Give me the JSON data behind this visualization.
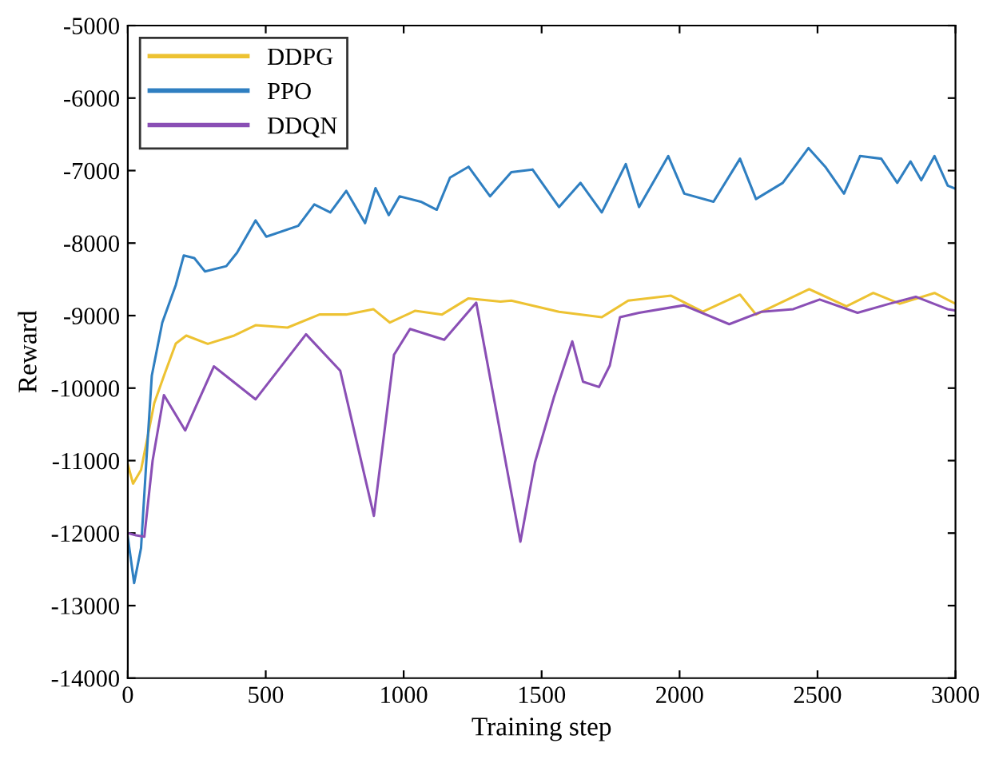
{
  "chart_data": {
    "type": "line",
    "xlabel": "Training step",
    "ylabel": "Reward",
    "xlim": [
      0,
      3000
    ],
    "xticks": [
      0,
      500,
      1000,
      1500,
      2000,
      2500,
      3000
    ],
    "ylim": [
      -14000,
      -5000
    ],
    "yticks": [
      -14000,
      -13000,
      -12000,
      -11000,
      -10000,
      -9000,
      -8000,
      -7000,
      -6000,
      -5000
    ],
    "grid": false,
    "legend": "top left",
    "line_style": "solid",
    "marker": "none",
    "series": [
      {
        "name": "DDPG",
        "color": "#edc232",
        "x": [
          0,
          19,
          48,
          96,
          134,
          174,
          212,
          290,
          386,
          463,
          579,
          695,
          792,
          890,
          950,
          1042,
          1139,
          1235,
          1351,
          1390,
          1563,
          1718,
          1814,
          1969,
          2084,
          2219,
          2277,
          2470,
          2605,
          2702,
          2798,
          2924,
          3000
        ],
        "values": [
          -11050,
          -11318,
          -11130,
          -10207,
          -9800,
          -9385,
          -9275,
          -9390,
          -9275,
          -9133,
          -9165,
          -8985,
          -8985,
          -8911,
          -9096,
          -8933,
          -8985,
          -8762,
          -8806,
          -8793,
          -8947,
          -9022,
          -8793,
          -8725,
          -8947,
          -8710,
          -8985,
          -8636,
          -8873,
          -8688,
          -8836,
          -8688,
          -8836
        ]
      },
      {
        "name": "PPO",
        "color": "#2f7fc1",
        "x": [
          0,
          23,
          48,
          67,
          87,
          125,
          174,
          203,
          241,
          280,
          357,
          396,
          463,
          502,
          618,
          676,
          734,
          792,
          860,
          898,
          946,
          985,
          1062,
          1120,
          1168,
          1235,
          1313,
          1390,
          1467,
          1563,
          1641,
          1718,
          1805,
          1853,
          1959,
          2017,
          2123,
          2219,
          2277,
          2374,
          2467,
          2528,
          2596,
          2654,
          2731,
          2789,
          2837,
          2876,
          2924,
          2972,
          3000
        ],
        "values": [
          -12052,
          -12688,
          -12207,
          -11022,
          -9830,
          -9096,
          -8578,
          -8170,
          -8207,
          -8392,
          -8318,
          -8133,
          -7688,
          -7911,
          -7762,
          -7466,
          -7577,
          -7280,
          -7725,
          -7243,
          -7614,
          -7355,
          -7429,
          -7540,
          -7096,
          -6947,
          -7355,
          -7022,
          -6985,
          -7503,
          -7169,
          -7577,
          -6911,
          -7503,
          -6800,
          -7318,
          -7429,
          -6836,
          -7392,
          -7169,
          -6689,
          -6947,
          -7318,
          -6800,
          -6836,
          -7169,
          -6873,
          -7133,
          -6800,
          -7207,
          -7250
        ]
      },
      {
        "name": "DDQN",
        "color": "#8a4fb5",
        "x": [
          0,
          30,
          60,
          90,
          131,
          208,
          312,
          463,
          646,
          770,
          892,
          965,
          1023,
          1147,
          1263,
          1423,
          1476,
          1544,
          1611,
          1650,
          1708,
          1747,
          1784,
          1853,
          2015,
          2180,
          2297,
          2412,
          2508,
          2645,
          2761,
          2856,
          2971,
          3000
        ],
        "values": [
          -12000,
          -12030,
          -12050,
          -11000,
          -10096,
          -10584,
          -9700,
          -10155,
          -9258,
          -9760,
          -11762,
          -9540,
          -9185,
          -9333,
          -8822,
          -12118,
          -11022,
          -10133,
          -9355,
          -9911,
          -9985,
          -9689,
          -9022,
          -8962,
          -8858,
          -9118,
          -8947,
          -8911,
          -8778,
          -8962,
          -8836,
          -8740,
          -8911,
          -8930
        ]
      }
    ]
  }
}
